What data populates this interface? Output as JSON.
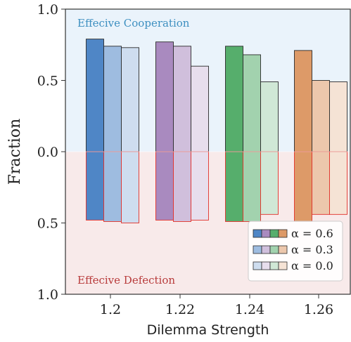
{
  "chart_data": {
    "type": "bar",
    "title": "",
    "xlabel": "Dilemma Strength",
    "ylabel": "Fraction",
    "categories": [
      "1.2",
      "1.22",
      "1.24",
      "1.26"
    ],
    "y_ticks": [
      "1.0",
      "0.5",
      "0.0",
      "0.5",
      "1.0"
    ],
    "ylim": [
      -1,
      1
    ],
    "group_colors": [
      "#4f86c6",
      "#a98abf",
      "#56ae6c",
      "#dd9a68"
    ],
    "series_alphas": [
      1.0,
      0.55,
      0.28
    ],
    "series": [
      {
        "name": "α = 0.6",
        "cooperation": [
          0.79,
          0.77,
          0.74,
          0.71
        ],
        "defection": [
          0.48,
          0.48,
          0.49,
          0.49
        ]
      },
      {
        "name": "α = 0.3",
        "cooperation": [
          0.74,
          0.74,
          0.68,
          0.5
        ],
        "defection": [
          0.49,
          0.49,
          0.49,
          0.44
        ]
      },
      {
        "name": "α = 0.0",
        "cooperation": [
          0.73,
          0.6,
          0.49,
          0.49
        ],
        "defection": [
          0.5,
          0.48,
          0.44,
          0.44
        ]
      }
    ],
    "annotations": {
      "top": "Effecive Cooperation",
      "bottom": "Effecive Defection"
    },
    "region_colors": {
      "top": "#eaf3fb",
      "bottom": "#f8eaea"
    },
    "annotation_colors": {
      "top": "#3d8fc0",
      "bottom": "#b83b3b"
    },
    "legend_position": "lower-right",
    "grid": false
  }
}
